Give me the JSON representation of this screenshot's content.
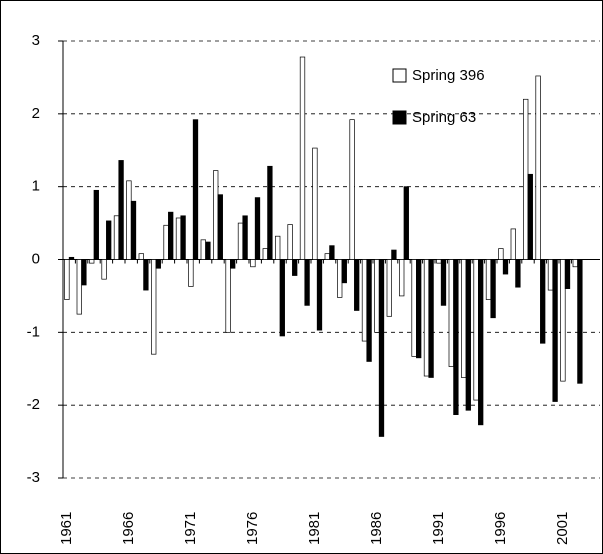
{
  "chart_data": {
    "type": "bar",
    "categories": [
      "1961",
      null,
      null,
      null,
      null,
      "1966",
      null,
      null,
      null,
      null,
      "1971",
      null,
      null,
      null,
      null,
      "1976",
      null,
      null,
      null,
      null,
      "1981",
      null,
      null,
      null,
      null,
      "1986",
      null,
      null,
      null,
      null,
      "1991",
      null,
      null,
      null,
      null,
      "1996",
      null,
      null,
      null,
      null,
      "2001",
      null
    ],
    "series": [
      {
        "name": "Spring 396",
        "color": "#ffffff",
        "values": [
          -0.55,
          -0.75,
          -0.05,
          -0.27,
          0.6,
          1.08,
          0.08,
          -1.3,
          0.47,
          0.57,
          -0.37,
          0.27,
          1.22,
          -1.0,
          0.5,
          -0.1,
          0.15,
          0.32,
          0.48,
          2.78,
          1.53,
          0.08,
          -0.52,
          1.92,
          -1.12,
          -1.0,
          -0.78,
          -0.5,
          -1.33,
          -1.6,
          -0.05,
          -1.47,
          -1.62,
          -1.93,
          -0.55,
          0.15,
          0.42,
          2.2,
          2.52,
          -0.42,
          -1.67,
          -0.1
        ]
      },
      {
        "name": "Spring 63",
        "color": "#000000",
        "values": [
          0.03,
          -0.35,
          0.95,
          0.53,
          1.36,
          0.8,
          -0.42,
          -0.12,
          0.65,
          0.6,
          1.92,
          0.24,
          0.89,
          -0.12,
          0.6,
          0.85,
          1.28,
          -1.05,
          -0.22,
          -0.63,
          -0.97,
          0.19,
          -0.32,
          -0.7,
          -1.4,
          -2.43,
          0.13,
          1.0,
          -1.35,
          -1.62,
          -0.63,
          -2.13,
          -2.07,
          -2.27,
          -0.8,
          -0.2,
          -0.38,
          1.17,
          -1.15,
          -1.95,
          -0.4,
          -1.7
        ]
      }
    ],
    "ylim": [
      -3,
      3
    ],
    "yticks": [
      -3,
      -2,
      -1,
      0,
      1,
      2,
      3
    ],
    "grid": true,
    "legend": "upper right"
  }
}
